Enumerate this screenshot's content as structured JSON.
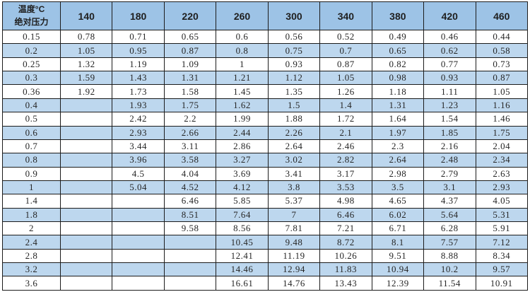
{
  "table": {
    "corner": {
      "line1": "温度°C",
      "line2": "绝对压力"
    },
    "temperature_columns": [
      "140",
      "180",
      "220",
      "260",
      "300",
      "340",
      "380",
      "420",
      "460"
    ],
    "pressure_rows": [
      {
        "pressure": "0.15",
        "values": [
          "0.78",
          "0.71",
          "0.65",
          "0.6",
          "0.56",
          "0.52",
          "0.49",
          "0.46",
          "0.44"
        ]
      },
      {
        "pressure": "0.2",
        "values": [
          "1.05",
          "0.95",
          "0.87",
          "0.8",
          "0.75",
          "0.7",
          "0.65",
          "0.62",
          "0.58"
        ]
      },
      {
        "pressure": "0.25",
        "values": [
          "1.32",
          "1.19",
          "1.09",
          "1",
          "0.93",
          "0.87",
          "0.82",
          "0.77",
          "0.73"
        ]
      },
      {
        "pressure": "0.3",
        "values": [
          "1.59",
          "1.43",
          "1.31",
          "1.21",
          "1.12",
          "1.05",
          "0.98",
          "0.93",
          "0.87"
        ]
      },
      {
        "pressure": "0.36",
        "values": [
          "1.92",
          "1.73",
          "1.58",
          "1.45",
          "1.35",
          "1.26",
          "1.18",
          "1.11",
          "1.05"
        ]
      },
      {
        "pressure": "0.4",
        "values": [
          "",
          "1.93",
          "1.75",
          "1.62",
          "1.5",
          "1.4",
          "1.31",
          "1.23",
          "1.16"
        ]
      },
      {
        "pressure": "0.5",
        "values": [
          "",
          "2.42",
          "2.2",
          "1.99",
          "1.88",
          "1.72",
          "1.64",
          "1.54",
          "1.46"
        ]
      },
      {
        "pressure": "0.6",
        "values": [
          "",
          "2.93",
          "2.66",
          "2.44",
          "2.26",
          "2.1",
          "1.97",
          "1.85",
          "1.75"
        ]
      },
      {
        "pressure": "0.7",
        "values": [
          "",
          "3.44",
          "3.11",
          "2.86",
          "2.64",
          "2.46",
          "2.3",
          "2.16",
          "2.04"
        ]
      },
      {
        "pressure": "0.8",
        "values": [
          "",
          "3.96",
          "3.58",
          "3.27",
          "3.02",
          "2.82",
          "2.64",
          "2.48",
          "2.34"
        ]
      },
      {
        "pressure": "0.9",
        "values": [
          "",
          "4.5",
          "4.04",
          "3.69",
          "3.41",
          "3.17",
          "2.98",
          "2.79",
          "2.63"
        ]
      },
      {
        "pressure": "1",
        "values": [
          "",
          "5.04",
          "4.52",
          "4.12",
          "3.8",
          "3.53",
          "3.5",
          "3.1",
          "2.93"
        ]
      },
      {
        "pressure": "1.4",
        "values": [
          "",
          "",
          "6.46",
          "5.85",
          "5.37",
          "4.98",
          "4.65",
          "4.37",
          "4.05"
        ]
      },
      {
        "pressure": "1.8",
        "values": [
          "",
          "",
          "8.51",
          "7.64",
          "7",
          "6.46",
          "6.02",
          "5.64",
          "5.31"
        ]
      },
      {
        "pressure": "2",
        "values": [
          "",
          "",
          "9.58",
          "8.56",
          "7.81",
          "7.21",
          "6.71",
          "6.28",
          "5.91"
        ]
      },
      {
        "pressure": "2.4",
        "values": [
          "",
          "",
          "",
          "10.45",
          "9.48",
          "8.72",
          "8.1",
          "7.57",
          "7.12"
        ]
      },
      {
        "pressure": "2.8",
        "values": [
          "",
          "",
          "",
          "12.41",
          "11.19",
          "10.26",
          "9.51",
          "8.88",
          "8.34"
        ]
      },
      {
        "pressure": "3.2",
        "values": [
          "",
          "",
          "",
          "14.46",
          "12.94",
          "11.83",
          "10.94",
          "10.2",
          "9.57"
        ]
      },
      {
        "pressure": "3.6",
        "values": [
          "",
          "",
          "",
          "16.61",
          "14.76",
          "13.43",
          "12.39",
          "11.54",
          "10.91"
        ]
      }
    ]
  },
  "colors": {
    "header_bg": "#9dc3e6",
    "band_row_bg": "#bdd7ee",
    "plain_row_bg": "#ffffff",
    "border": "#1c1c1c"
  }
}
